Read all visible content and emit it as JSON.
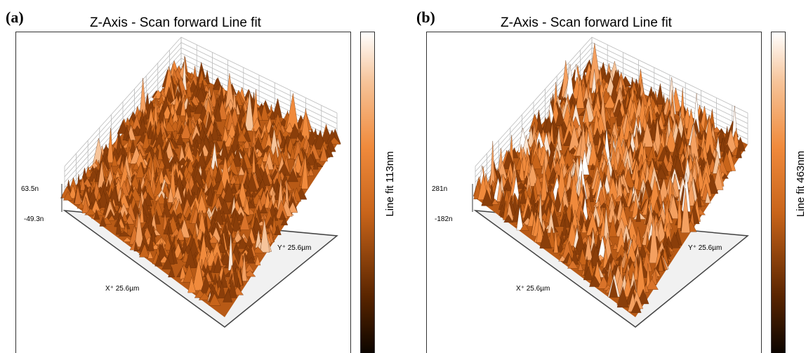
{
  "panels": [
    {
      "label": "(a)",
      "title": "Z-Axis - Scan forward   Line fit",
      "z_max": "63.5n",
      "z_min": "-49.3n",
      "x_axis": "X⁺ 25.6µm",
      "y_axis": "Y⁺ 25.6µm",
      "colorbar_label": "Line fit 113nm"
    },
    {
      "label": "(b)",
      "title": "Z-Axis - Scan forward   Line fit",
      "z_max": "281n",
      "z_min": "-182n",
      "x_axis": "X⁺ 25.6µm",
      "y_axis": "Y⁺ 25.6µm",
      "colorbar_label": "Line fit 463nm"
    }
  ]
}
